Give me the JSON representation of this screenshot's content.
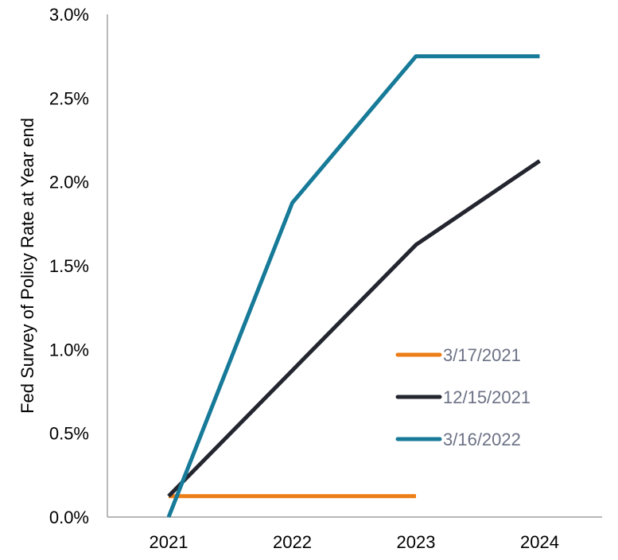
{
  "chart_data": {
    "type": "line",
    "title": "",
    "xlabel": "",
    "ylabel": "Fed Survey of Policy Rate at Year end",
    "x": [
      "2021",
      "2022",
      "2023",
      "2024"
    ],
    "ylim": [
      0,
      3.0
    ],
    "yticks": [
      "0.0%",
      "0.5%",
      "1.0%",
      "1.5%",
      "2.0%",
      "2.5%",
      "3.0%"
    ],
    "grid": false,
    "legend_position": "center-right",
    "series": [
      {
        "name": "3/17/2021",
        "color": "#ed7d16",
        "values": [
          0.125,
          0.125,
          0.125,
          null
        ]
      },
      {
        "name": "12/15/2021",
        "color": "#23252f",
        "values": [
          0.125,
          0.875,
          1.625,
          2.125
        ]
      },
      {
        "name": "3/16/2022",
        "color": "#167a98",
        "values": [
          0.0,
          1.875,
          2.75,
          2.75
        ]
      }
    ]
  }
}
